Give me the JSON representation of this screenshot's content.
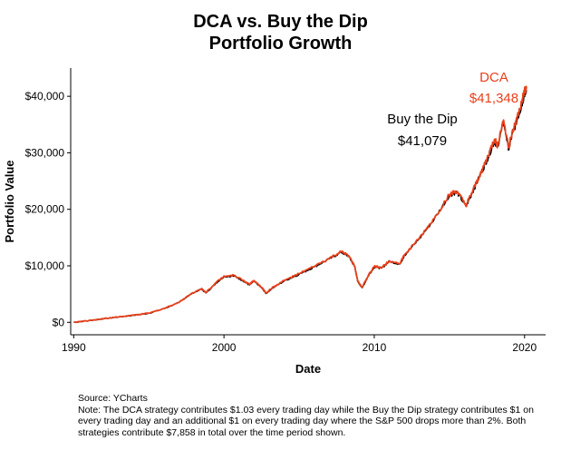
{
  "chart_data": {
    "type": "line",
    "title": "DCA vs. Buy the Dip",
    "subtitle": "Portfolio Growth",
    "xlabel": "Date",
    "ylabel": "Portfolio Value",
    "xlim": [
      1989.8,
      2021.4
    ],
    "ylim": [
      -2200,
      45000
    ],
    "grid": false,
    "x_ticks": [
      1990,
      2000,
      2010,
      2020
    ],
    "y_ticks": [
      0,
      10000,
      20000,
      30000,
      40000
    ],
    "y_tick_labels": [
      "$0",
      "$10,000",
      "$20,000",
      "$30,000",
      "$40,000"
    ],
    "series": [
      {
        "name": "Buy the Dip",
        "color": "#000000",
        "x": [
          1990.0,
          1991.0,
          1992.0,
          1993.0,
          1994.0,
          1995.0,
          1996.0,
          1997.0,
          1997.8,
          1998.5,
          1998.8,
          1999.5,
          2000.0,
          2000.7,
          2001.3,
          2001.7,
          2002.0,
          2002.5,
          2002.8,
          2003.2,
          2004.0,
          2005.0,
          2006.0,
          2007.0,
          2007.8,
          2008.3,
          2008.7,
          2008.9,
          2009.2,
          2009.6,
          2010.0,
          2010.5,
          2011.0,
          2011.7,
          2012.0,
          2013.0,
          2014.0,
          2015.0,
          2015.5,
          2016.1,
          2016.5,
          2017.0,
          2017.5,
          2018.0,
          2018.2,
          2018.6,
          2018.95,
          2019.1,
          2019.5,
          2019.8,
          2020.0,
          2020.12
        ],
        "y": [
          0,
          300,
          650,
          950,
          1250,
          1600,
          2400,
          3500,
          5000,
          5900,
          5200,
          7000,
          8100,
          8200,
          7300,
          6600,
          7300,
          6100,
          5100,
          6000,
          7300,
          8500,
          9800,
          11200,
          12400,
          11700,
          9800,
          7200,
          6100,
          8200,
          9800,
          9600,
          10800,
          10300,
          11800,
          14800,
          18300,
          22500,
          23100,
          20500,
          22800,
          25800,
          28700,
          32100,
          31000,
          35500,
          30600,
          32400,
          35800,
          38300,
          40500,
          41079
        ]
      },
      {
        "name": "DCA",
        "color": "#e8411b",
        "x": [
          1990.0,
          1991.0,
          1992.0,
          1993.0,
          1994.0,
          1995.0,
          1996.0,
          1997.0,
          1997.8,
          1998.5,
          1998.8,
          1999.5,
          2000.0,
          2000.7,
          2001.3,
          2001.7,
          2002.0,
          2002.5,
          2002.8,
          2003.2,
          2004.0,
          2005.0,
          2006.0,
          2007.0,
          2007.8,
          2008.3,
          2008.7,
          2008.9,
          2009.2,
          2009.6,
          2010.0,
          2010.5,
          2011.0,
          2011.7,
          2012.0,
          2013.0,
          2014.0,
          2015.0,
          2015.5,
          2016.1,
          2016.5,
          2017.0,
          2017.5,
          2018.0,
          2018.2,
          2018.6,
          2018.95,
          2019.1,
          2019.5,
          2019.8,
          2020.0,
          2020.12
        ],
        "y": [
          0,
          310,
          660,
          970,
          1270,
          1620,
          2450,
          3550,
          5050,
          5950,
          5300,
          7100,
          8200,
          8300,
          7400,
          6700,
          7400,
          6200,
          5200,
          6100,
          7400,
          8600,
          9900,
          11300,
          12500,
          11800,
          9900,
          7300,
          6200,
          8300,
          9900,
          9700,
          10900,
          10400,
          11900,
          14900,
          18400,
          22600,
          23200,
          20600,
          22900,
          25900,
          28900,
          32400,
          31300,
          35800,
          30900,
          32700,
          36100,
          38700,
          41000,
          41348
        ]
      }
    ],
    "annotations": [
      {
        "series": "Buy the Dip",
        "label": "Buy the Dip",
        "value": "$41,079",
        "color": "#000000"
      },
      {
        "series": "DCA",
        "label": "DCA",
        "value": "$41,348",
        "color": "#e8411b"
      }
    ]
  },
  "notes": {
    "source": "Source:  YCharts",
    "note": "Note: The DCA strategy contributes $1.03 every trading day while the Buy the Dip strategy contributes $1 on every trading day and an additional $1 on every trading day where the S&P 500 drops more than 2%. Both strategies contribute $7,858 in total over the time period shown."
  }
}
